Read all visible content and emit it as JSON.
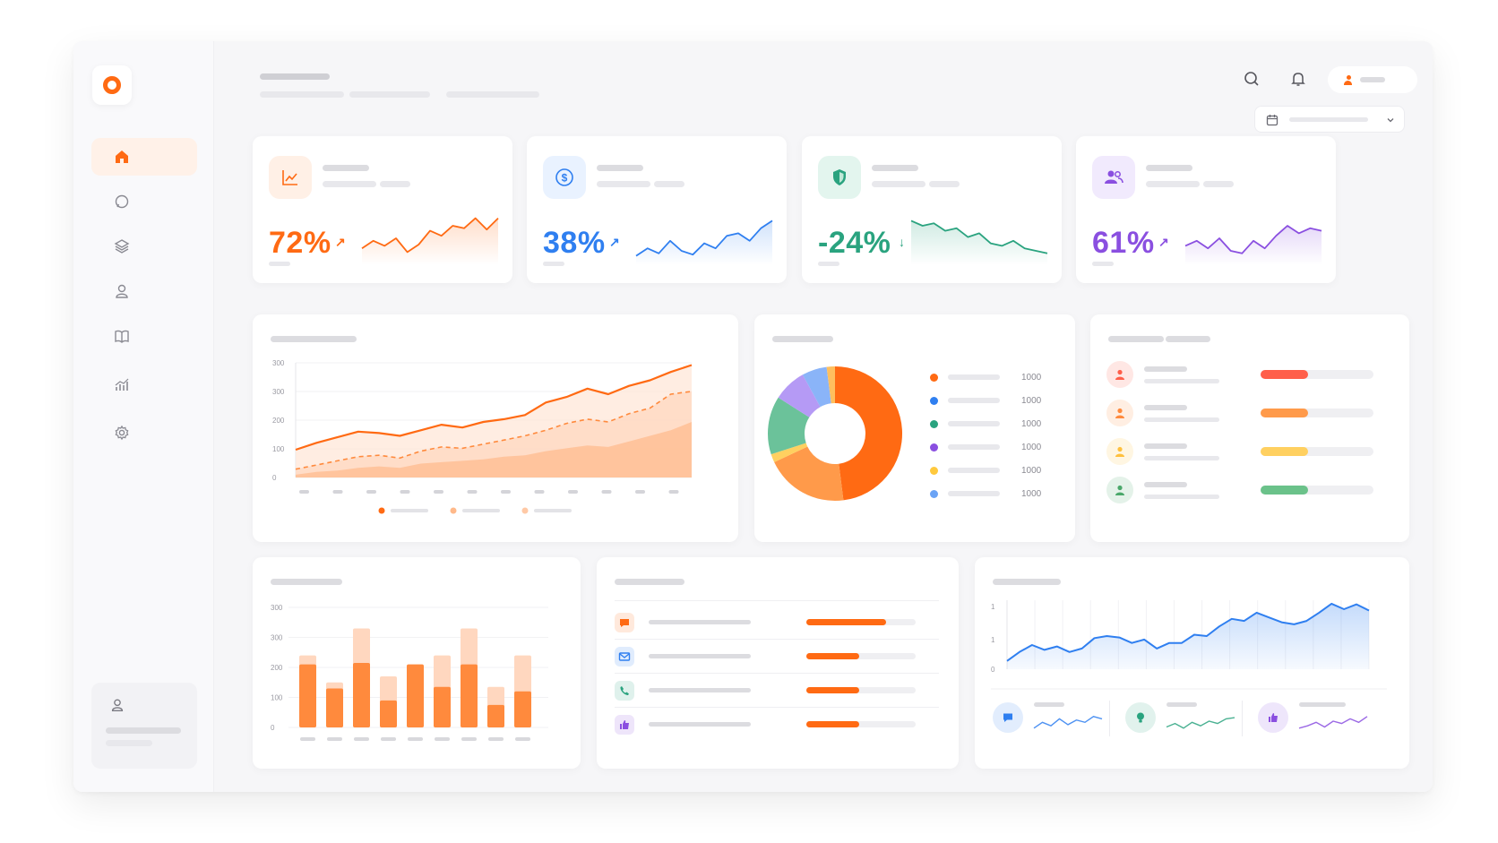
{
  "colors": {
    "accent": "#ff6a13",
    "blue": "#2f7ff0",
    "green": "#2aa37f",
    "purple": "#8a4fe0",
    "red": "#ff5f4a",
    "orange": "#ff9a4a",
    "yellow": "#ffd060",
    "mint": "#6bc28a"
  },
  "sidebar": {
    "items": [
      {
        "icon": "home-icon",
        "active": true
      },
      {
        "icon": "chat-icon",
        "active": false
      },
      {
        "icon": "layers-icon",
        "active": false
      },
      {
        "icon": "users-icon",
        "active": false
      },
      {
        "icon": "book-icon",
        "active": false
      },
      {
        "icon": "analytics-icon",
        "active": false
      },
      {
        "icon": "settings-icon",
        "active": false
      }
    ]
  },
  "kpis": [
    {
      "value": "72%",
      "direction": "up",
      "color": "#ff6a13",
      "icon": "trend-chart-icon"
    },
    {
      "value": "38%",
      "direction": "up",
      "color": "#2f7ff0",
      "icon": "dollar-icon"
    },
    {
      "value": "-24%",
      "direction": "down",
      "color": "#2aa37f",
      "icon": "shield-icon"
    },
    {
      "value": "61%",
      "direction": "up",
      "color": "#8a4fe0",
      "icon": "users-icon"
    }
  ],
  "chart_data": [
    {
      "type": "area",
      "y_ticks": [
        "0",
        "100",
        "200",
        "300",
        "300"
      ],
      "ylim": [
        0,
        400
      ],
      "x": [
        1,
        2,
        3,
        4,
        5,
        6,
        7,
        8,
        9,
        10,
        11,
        12,
        13,
        14,
        15,
        16,
        17,
        18,
        19,
        20
      ],
      "series": [
        {
          "values": [
            100,
            125,
            145,
            165,
            160,
            150,
            170,
            190,
            180,
            200,
            210,
            225,
            270,
            290,
            320,
            300,
            330,
            350,
            380,
            405
          ]
        },
        {
          "values": [
            30,
            45,
            60,
            75,
            80,
            70,
            95,
            110,
            105,
            120,
            135,
            150,
            170,
            195,
            210,
            200,
            230,
            250,
            300,
            310
          ]
        },
        {
          "values": [
            10,
            20,
            25,
            35,
            40,
            35,
            50,
            55,
            60,
            65,
            75,
            80,
            95,
            105,
            115,
            110,
            130,
            150,
            170,
            200
          ]
        }
      ]
    },
    {
      "type": "pie",
      "values": [
        48,
        20,
        2,
        14,
        8,
        6,
        2
      ],
      "colors": [
        "#ff6a13",
        "#ff9a4a",
        "#ffd060",
        "#6bc29a",
        "#b59af5",
        "#8ab4f8",
        "#ffbf5e"
      ],
      "legend_values": [
        "1000",
        "1000",
        "1000",
        "1000",
        "1000",
        "1000"
      ],
      "legend_colors": [
        "#ff6a13",
        "#2f7ff0",
        "#2aa37f",
        "#8a4fe0",
        "#ffc93d",
        "#6aa3f5"
      ]
    },
    {
      "type": "bar",
      "y_ticks": [
        "0",
        "100",
        "200",
        "300",
        "300"
      ],
      "ylim": [
        0,
        400
      ],
      "values": [
        210,
        130,
        215,
        90,
        210,
        135,
        210,
        75,
        120
      ],
      "totals": [
        240,
        150,
        330,
        170,
        210,
        240,
        330,
        135,
        240
      ]
    },
    {
      "type": "line",
      "y_ticks": [
        "0",
        "1",
        "1"
      ],
      "ylim": [
        0,
        100
      ],
      "values": [
        12,
        25,
        35,
        28,
        33,
        25,
        30,
        45,
        48,
        46,
        38,
        43,
        30,
        38,
        38,
        50,
        48,
        62,
        73,
        70,
        82,
        75,
        68,
        65,
        70,
        82,
        95,
        87,
        94,
        85
      ]
    }
  ],
  "rank_list": {
    "avatar_colors": [
      "#ff5f4a",
      "#ff8a3d",
      "#ffc03d",
      "#4aa86a"
    ],
    "progress": [
      0.42,
      0.42,
      0.42,
      0.42
    ],
    "bar_colors": [
      "#ff5f4a",
      "#ff9a4a",
      "#ffd060",
      "#6bc28a"
    ]
  },
  "channels": {
    "items": [
      {
        "icon": "chat-bubble-icon",
        "color": "#ff6a13",
        "progress": 0.73
      },
      {
        "icon": "mail-icon",
        "color": "#2f7ff0",
        "progress": 0.48
      },
      {
        "icon": "phone-icon",
        "color": "#2aa37f",
        "progress": 0.48
      },
      {
        "icon": "thumbs-up-icon",
        "color": "#8a4fe0",
        "progress": 0.48
      }
    ]
  },
  "mini_stats": [
    {
      "icon": "message-icon",
      "color": "#2f7ff0"
    },
    {
      "icon": "bulb-icon",
      "color": "#2aa37f"
    },
    {
      "icon": "like-icon",
      "color": "#8a4fe0"
    }
  ]
}
